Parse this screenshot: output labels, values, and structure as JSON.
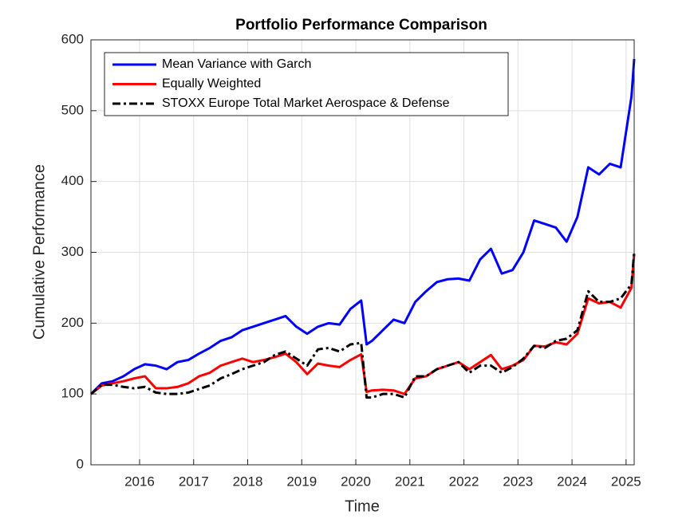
{
  "chart_data": {
    "type": "line",
    "title": "Portfolio Performance Comparison",
    "xlabel": "Time",
    "ylabel": "Cumulative Performance",
    "x": [
      2015.1,
      2015.3,
      2015.5,
      2015.7,
      2015.9,
      2016.1,
      2016.3,
      2016.5,
      2016.7,
      2016.9,
      2017.1,
      2017.3,
      2017.5,
      2017.7,
      2017.9,
      2018.1,
      2018.3,
      2018.5,
      2018.7,
      2018.9,
      2019.1,
      2019.3,
      2019.5,
      2019.7,
      2019.9,
      2020.1,
      2020.2,
      2020.3,
      2020.5,
      2020.7,
      2020.9,
      2021.1,
      2021.3,
      2021.5,
      2021.7,
      2021.9,
      2022.1,
      2022.3,
      2022.5,
      2022.7,
      2022.9,
      2023.1,
      2023.3,
      2023.5,
      2023.7,
      2023.9,
      2024.1,
      2024.3,
      2024.5,
      2024.7,
      2024.9,
      2025.1,
      2025.15
    ],
    "series": [
      {
        "name": "Mean Variance with Garch",
        "color": "#0000ff",
        "dash": "solid",
        "values": [
          100,
          115,
          118,
          125,
          135,
          142,
          140,
          135,
          145,
          148,
          157,
          165,
          175,
          180,
          190,
          195,
          200,
          205,
          210,
          195,
          185,
          195,
          200,
          198,
          220,
          232,
          170,
          175,
          190,
          205,
          200,
          230,
          245,
          258,
          262,
          263,
          260,
          290,
          305,
          270,
          275,
          300,
          345,
          340,
          335,
          315,
          350,
          420,
          410,
          425,
          420,
          520,
          573
        ]
      },
      {
        "name": "Equally Weighted",
        "color": "#ff0000",
        "dash": "solid",
        "values": [
          100,
          112,
          115,
          118,
          122,
          125,
          108,
          108,
          110,
          115,
          125,
          130,
          140,
          145,
          150,
          145,
          148,
          152,
          157,
          145,
          128,
          143,
          140,
          138,
          148,
          156,
          103,
          105,
          106,
          105,
          100,
          122,
          125,
          135,
          140,
          145,
          135,
          145,
          155,
          135,
          140,
          148,
          168,
          167,
          173,
          170,
          185,
          235,
          228,
          230,
          222,
          250,
          298
        ]
      },
      {
        "name": "STOXX Europe Total Market Aerospace & Defense",
        "color": "#000000",
        "dash": "dashdot",
        "values": [
          100,
          113,
          113,
          110,
          108,
          110,
          102,
          100,
          100,
          102,
          107,
          112,
          122,
          128,
          135,
          140,
          145,
          155,
          160,
          150,
          140,
          163,
          165,
          160,
          170,
          172,
          95,
          95,
          100,
          100,
          95,
          125,
          125,
          135,
          140,
          145,
          130,
          140,
          140,
          130,
          138,
          150,
          168,
          165,
          175,
          178,
          190,
          245,
          230,
          230,
          235,
          255,
          300
        ]
      }
    ],
    "xlim": [
      2015.1,
      2025.15
    ],
    "xticks": [
      2016,
      2017,
      2018,
      2019,
      2020,
      2021,
      2022,
      2023,
      2024,
      2025
    ],
    "ylim": [
      0,
      600
    ],
    "yticks": [
      0,
      100,
      200,
      300,
      400,
      500,
      600
    ],
    "grid": true,
    "legend": "upper-left"
  }
}
